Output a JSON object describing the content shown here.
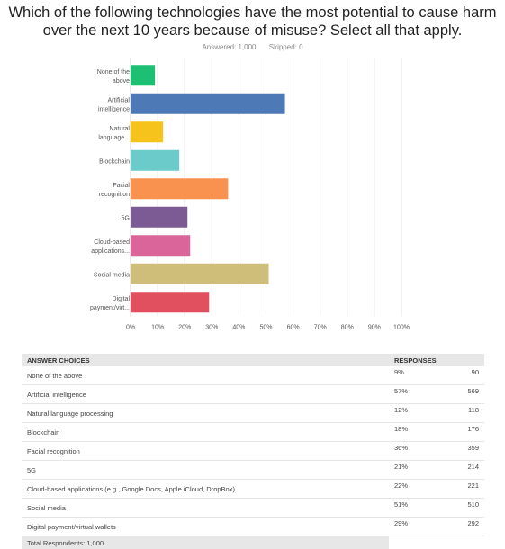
{
  "question": "Which of the following technologies have the most potential to cause harm over the next 10 years because of misuse? Select all that apply.",
  "answered": "Answered: 1,000",
  "skipped": "Skipped: 0",
  "chart_data": {
    "type": "bar",
    "orientation": "horizontal",
    "categories": [
      "None of the above",
      "Artificial intelligence",
      "Natural language...",
      "Blockchain",
      "Facial recognition",
      "5G",
      "Cloud-based applications...",
      "Social media",
      "Digital payment/virt..."
    ],
    "category_label_lines": [
      [
        "None of the",
        "above"
      ],
      [
        "Artificial",
        "intelligence"
      ],
      [
        "Natural",
        "language..."
      ],
      [
        "Blockchain"
      ],
      [
        "Facial",
        "recognition"
      ],
      [
        "5G"
      ],
      [
        "Cloud-based",
        "applications..."
      ],
      [
        "Social media"
      ],
      [
        "Digital",
        "payment/virt..."
      ]
    ],
    "values": [
      9,
      57,
      12,
      18,
      36,
      21,
      22,
      51,
      29
    ],
    "colors": [
      "#1dbf73",
      "#4e79b7",
      "#f6c21c",
      "#6bcbcb",
      "#f9914f",
      "#7c5b94",
      "#d9659a",
      "#cfbd7a",
      "#e0505e"
    ],
    "xlim": [
      0,
      100
    ],
    "xticks": [
      "0%",
      "10%",
      "20%",
      "30%",
      "40%",
      "50%",
      "60%",
      "70%",
      "80%",
      "90%",
      "100%"
    ],
    "grid": true
  },
  "table": {
    "headers": [
      "ANSWER CHOICES",
      "RESPONSES",
      ""
    ],
    "rows": [
      {
        "choice": "None of the above",
        "pct": "9%",
        "count": "90"
      },
      {
        "choice": "Artificial intelligence",
        "pct": "57%",
        "count": "569"
      },
      {
        "choice": "Natural language processing",
        "pct": "12%",
        "count": "118"
      },
      {
        "choice": "Blockchain",
        "pct": "18%",
        "count": "176"
      },
      {
        "choice": "Facial recognition",
        "pct": "36%",
        "count": "359"
      },
      {
        "choice": "5G",
        "pct": "21%",
        "count": "214"
      },
      {
        "choice": "Cloud-based applications (e.g., Google Docs, Apple iCloud, DropBox)",
        "pct": "22%",
        "count": "221"
      },
      {
        "choice": "Social media",
        "pct": "51%",
        "count": "510"
      },
      {
        "choice": "Digital payment/virtual wallets",
        "pct": "29%",
        "count": "292"
      }
    ],
    "total": "Total Respondents: 1,000"
  }
}
